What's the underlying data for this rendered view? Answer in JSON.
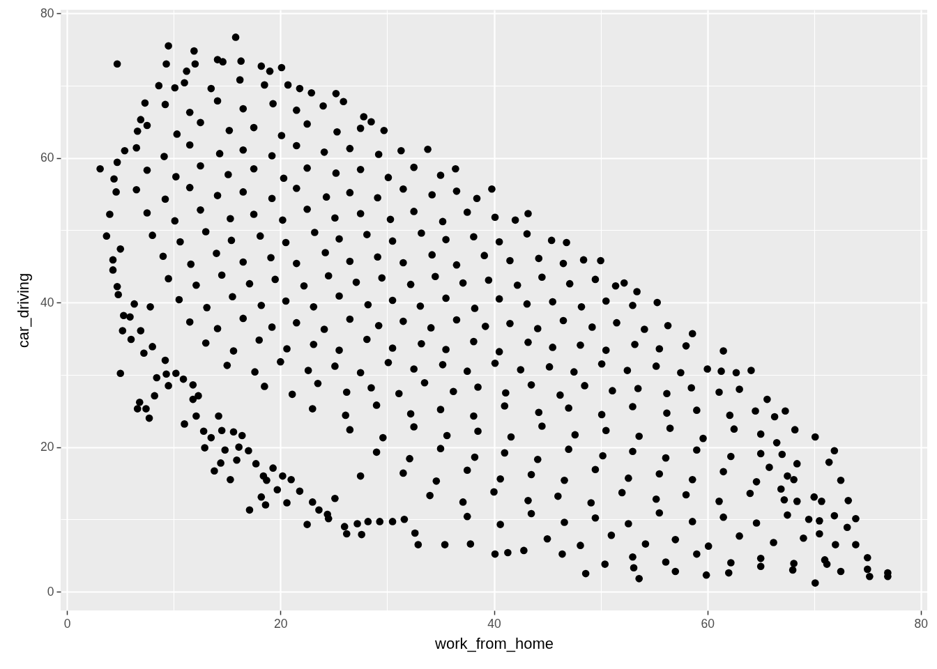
{
  "chart_data": {
    "type": "scatter",
    "xlabel": "work_from_home",
    "ylabel": "car_driving",
    "color": "#000000",
    "marker": "circle",
    "grid": true,
    "xlim": [
      -0.6,
      80.6
    ],
    "ylim": [
      -2.6,
      80.5
    ],
    "xticks": [
      0,
      20,
      40,
      60,
      80
    ],
    "yticks": [
      0,
      20,
      40,
      60,
      80
    ],
    "x": [
      3.1,
      4.7,
      9.5,
      9.3,
      11.9,
      15.8,
      8.6,
      7.3,
      5.4,
      4.7,
      4.4,
      4.6,
      4.0,
      3.7,
      4.3,
      4.3,
      5.0,
      6.6,
      6.9,
      10.1,
      11.2,
      12.0,
      14.1,
      14.6,
      16.3,
      18.2,
      20.1,
      19.0,
      25.2,
      25.9,
      27.8,
      28.5,
      29.7,
      22.9,
      20.7,
      21.8,
      33.8,
      36.4,
      39.8,
      43.2,
      46.8,
      50.0,
      52.2,
      53.4,
      55.3,
      58.6,
      61.5,
      64.1,
      67.3,
      68.2,
      70.1,
      71.9,
      71.4,
      72.5,
      70.7,
      73.9,
      75.0,
      76.9,
      76.9,
      75.2,
      70.1,
      73.9,
      68.4,
      68.1,
      68.4,
      65.6,
      66.3,
      62.7,
      53.6,
      48.6,
      50.4,
      53.1,
      59.9,
      40.1,
      41.3,
      42.8,
      46.4,
      32.9,
      35.4,
      37.8,
      32.6,
      5.0,
      6.6,
      7.4,
      7.7,
      6.8,
      8.2,
      8.4,
      9.5,
      11.0,
      12.1,
      12.9,
      13.8,
      14.4,
      15.3,
      17.1,
      18.6,
      18.2,
      20.6,
      22.5,
      26.2,
      27.6,
      26.0,
      27.2,
      24.5,
      23.6,
      23.0,
      19.7,
      18.7,
      15.9,
      14.8,
      13.5,
      12.8,
      14.2,
      4.7,
      4.8,
      6.3,
      5.3,
      5.9,
      5.2,
      6.0,
      7.2,
      6.9,
      7.8,
      8.0,
      9.3,
      9.2,
      10.2,
      10.9,
      11.8,
      11.8,
      12.3,
      14.5,
      15.6,
      16.4,
      16.1,
      17.0,
      17.7,
      18.4,
      19.3,
      20.2,
      21.0,
      21.8,
      24.4,
      25.1,
      28.2,
      29.3,
      30.5,
      31.6,
      27.5,
      73.2,
      71.9,
      73.1,
      75.0,
      61.3,
      66.5,
      67.0,
      65.8,
      66.9,
      69.5,
      70.5,
      71.2,
      72.5,
      68.0,
      65.0,
      62.0,
      57.0,
      11,
      13.5,
      16.2,
      18.5,
      9.2,
      11.5,
      14.1,
      16.5,
      19.3,
      21.5,
      24.0,
      7.5,
      10.3,
      12.5,
      15.2,
      17.5,
      20.1,
      22.5,
      25.3,
      27.5,
      6.5,
      9.1,
      11.5,
      14.3,
      16.5,
      19.2,
      21.5,
      24.1,
      26.5,
      29.2,
      31.3,
      7.5,
      10.2,
      12.5,
      15.1,
      17.5,
      20.3,
      22.5,
      25.2,
      27.5,
      30.1,
      32.5,
      35.0,
      6.5,
      9.2,
      11.5,
      14.1,
      16.5,
      19.2,
      21.5,
      24.3,
      26.5,
      29.1,
      31.5,
      34.2,
      36.5,
      38.4,
      7.5,
      10.1,
      12.5,
      15.3,
      17.5,
      20.2,
      22.5,
      25.1,
      27.5,
      30.3,
      32.5,
      35.2,
      37.5,
      40.1,
      42.0,
      8.0,
      10.6,
      13.0,
      15.4,
      18.1,
      20.5,
      23.2,
      25.5,
      28.1,
      30.5,
      33.2,
      35.5,
      38.1,
      40.5,
      43.1,
      45.4,
      9.0,
      11.6,
      14.0,
      16.5,
      19.1,
      21.5,
      24.2,
      26.5,
      29.1,
      31.5,
      34.2,
      36.5,
      39.1,
      41.5,
      44.2,
      46.5,
      48.4,
      9.5,
      12.1,
      14.5,
      17.1,
      19.5,
      22.2,
      24.5,
      27.1,
      29.5,
      32.2,
      34.5,
      37.1,
      39.5,
      42.2,
      44.5,
      47.1,
      49.5,
      51.4,
      10.5,
      13.1,
      15.5,
      18.2,
      20.5,
      23.1,
      25.5,
      28.2,
      30.5,
      33.1,
      35.5,
      38.2,
      40.5,
      43.1,
      45.5,
      48.2,
      50.5,
      53.0,
      11.5,
      14.1,
      16.5,
      19.2,
      21.5,
      24.1,
      26.5,
      29.2,
      31.5,
      34.1,
      36.5,
      39.2,
      41.5,
      44.1,
      46.5,
      49.2,
      51.5,
      54.1,
      56.3,
      13.0,
      15.6,
      18.0,
      20.6,
      23.1,
      25.5,
      28.1,
      30.5,
      33.2,
      35.5,
      38.1,
      40.5,
      43.2,
      45.5,
      48.1,
      50.5,
      53.2,
      55.5,
      58.0,
      15.0,
      17.6,
      20.0,
      22.6,
      25.1,
      27.5,
      30.1,
      32.5,
      35.2,
      37.5,
      40.1,
      42.5,
      45.2,
      47.5,
      50.1,
      52.5,
      55.2,
      57.5,
      60.0,
      18.5,
      21.1,
      23.5,
      26.2,
      28.5,
      31.1,
      33.5,
      36.2,
      38.5,
      41.1,
      43.5,
      46.2,
      48.5,
      51.1,
      53.5,
      56.2,
      58.5,
      61.1,
      63.0,
      23.0,
      26.1,
      29.0,
      32.2,
      35.0,
      38.1,
      41.0,
      44.2,
      47.0,
      50.1,
      53.0,
      56.2,
      59.0,
      62.1,
      64.5,
      26.5,
      29.6,
      32.5,
      35.6,
      38.5,
      41.6,
      44.5,
      47.6,
      50.5,
      53.6,
      56.5,
      59.6,
      62.5,
      65.0,
      29.0,
      32.1,
      35.0,
      38.2,
      41.0,
      44.1,
      47.0,
      50.2,
      53.0,
      56.1,
      59.0,
      62.2,
      65.0,
      31.5,
      34.6,
      37.5,
      40.6,
      43.5,
      46.6,
      49.5,
      52.6,
      55.5,
      58.6,
      61.5,
      64.6,
      67.5,
      34.0,
      37.1,
      40.0,
      43.2,
      46.0,
      49.1,
      52.0,
      55.2,
      58.0,
      61.1,
      64.0,
      67.2,
      70.0,
      37.5,
      40.6,
      43.5,
      46.6,
      49.5,
      52.6,
      55.5,
      58.6,
      61.5,
      64.6,
      67.5,
      70.5,
      45.0,
      48.1,
      51.0,
      54.2,
      57.0,
      60.1,
      63.0,
      66.2,
      69.0,
      72.0,
      53.0,
      56.1,
      59.0,
      62.2,
      65.0,
      68.1,
      71.0
    ],
    "values": [
      58.5,
      73.0,
      75.5,
      73.0,
      74.8,
      76.7,
      70.0,
      67.6,
      61.0,
      59.4,
      57.1,
      55.3,
      52.2,
      49.2,
      45.9,
      44.5,
      47.4,
      63.7,
      65.3,
      69.7,
      72.0,
      73.0,
      73.6,
      73.3,
      73.4,
      72.7,
      72.5,
      72.0,
      68.9,
      67.8,
      65.7,
      65.0,
      63.8,
      69.0,
      70.1,
      69.6,
      61.2,
      58.5,
      55.7,
      52.3,
      48.3,
      45.8,
      42.7,
      41.5,
      40.0,
      35.7,
      33.3,
      30.6,
      25.0,
      22.4,
      21.4,
      19.5,
      17.9,
      15.4,
      12.5,
      10.1,
      4.7,
      2.6,
      2.1,
      2.1,
      1.2,
      6.5,
      17.7,
      15.5,
      12.5,
      26.6,
      24.2,
      30.3,
      1.8,
      2.5,
      3.8,
      3.3,
      2.3,
      5.2,
      5.4,
      5.7,
      5.2,
      6.5,
      6.5,
      6.6,
      8.1,
      30.2,
      25.3,
      25.3,
      24.0,
      26.2,
      27.1,
      29.6,
      28.5,
      23.2,
      24.3,
      19.9,
      16.7,
      17.8,
      15.5,
      11.3,
      12.0,
      13.1,
      12.3,
      9.3,
      8.0,
      7.9,
      9.0,
      9.4,
      10.1,
      11.3,
      12.4,
      14.1,
      15.4,
      18.2,
      19.6,
      21.3,
      22.2,
      24.3,
      42.2,
      41.1,
      39.8,
      38.2,
      38.0,
      36.1,
      34.9,
      33.0,
      36.1,
      39.4,
      33.9,
      30.1,
      32.0,
      30.2,
      29.4,
      28.6,
      26.6,
      27.1,
      22.3,
      22.1,
      21.6,
      20.0,
      19.5,
      17.7,
      16.0,
      17.1,
      16.0,
      15.5,
      13.9,
      10.7,
      12.9,
      9.7,
      9.7,
      9.7,
      10.0,
      16.0,
      12.6,
      10.5,
      8.9,
      3.1,
      30.5,
      20.6,
      19.0,
      17.2,
      14.2,
      10.0,
      8.0,
      3.8,
      2.8,
      3.0,
      3.5,
      2.6,
      2.8,
      70.4,
      69.6,
      70.8,
      70.1,
      67.4,
      66.3,
      67.9,
      66.8,
      67.5,
      66.6,
      67.2,
      64.5,
      63.3,
      64.9,
      63.8,
      64.2,
      63.1,
      64.7,
      63.6,
      64.1,
      61.4,
      60.2,
      61.8,
      60.6,
      61.1,
      60.3,
      61.7,
      60.8,
      61.3,
      60.5,
      61.0,
      58.3,
      57.4,
      58.9,
      57.7,
      58.5,
      57.2,
      58.6,
      57.9,
      58.4,
      57.3,
      58.7,
      57.6,
      55.6,
      54.3,
      55.9,
      54.8,
      55.3,
      54.4,
      55.8,
      54.6,
      55.2,
      54.5,
      55.7,
      54.9,
      55.4,
      54.4,
      52.4,
      51.3,
      52.8,
      51.6,
      52.2,
      51.4,
      52.9,
      51.7,
      52.3,
      51.5,
      52.6,
      51.2,
      52.5,
      51.8,
      51.4,
      49.3,
      48.4,
      49.8,
      48.6,
      49.2,
      48.3,
      49.7,
      48.8,
      49.4,
      48.5,
      49.6,
      48.7,
      49.1,
      48.4,
      49.5,
      48.6,
      46.4,
      45.3,
      46.8,
      45.6,
      46.2,
      45.4,
      46.9,
      45.7,
      46.3,
      45.5,
      46.6,
      45.2,
      46.5,
      45.8,
      46.1,
      45.4,
      45.9,
      43.3,
      42.4,
      43.8,
      42.6,
      43.2,
      42.3,
      43.7,
      42.8,
      43.4,
      42.5,
      43.6,
      42.7,
      43.1,
      42.4,
      43.5,
      42.6,
      43.2,
      42.3,
      40.4,
      39.3,
      40.8,
      39.6,
      40.2,
      39.4,
      40.9,
      39.7,
      40.3,
      39.5,
      40.6,
      39.2,
      40.5,
      39.8,
      40.1,
      39.4,
      40.2,
      39.6,
      37.3,
      36.4,
      37.8,
      36.6,
      37.2,
      36.3,
      37.7,
      36.8,
      37.4,
      36.5,
      37.6,
      36.7,
      37.1,
      36.4,
      37.5,
      36.6,
      37.2,
      36.3,
      36.8,
      34.4,
      33.3,
      34.8,
      33.6,
      34.2,
      33.4,
      34.9,
      33.7,
      34.3,
      33.5,
      34.6,
      33.2,
      34.5,
      33.8,
      34.1,
      33.4,
      34.2,
      33.6,
      34.0,
      31.3,
      30.4,
      31.8,
      30.6,
      31.2,
      30.3,
      31.7,
      30.8,
      31.4,
      30.5,
      31.6,
      30.7,
      31.1,
      30.4,
      31.5,
      30.6,
      31.2,
      30.3,
      30.8,
      28.4,
      27.3,
      28.8,
      27.6,
      28.2,
      27.4,
      28.9,
      27.7,
      28.3,
      27.5,
      28.6,
      27.2,
      28.5,
      27.8,
      28.1,
      27.4,
      28.2,
      27.6,
      28.0,
      25.3,
      24.4,
      25.8,
      24.6,
      25.2,
      24.3,
      25.7,
      24.8,
      25.4,
      24.5,
      25.6,
      24.7,
      25.1,
      24.4,
      25.0,
      22.4,
      21.3,
      22.8,
      21.6,
      22.2,
      21.4,
      22.9,
      21.7,
      22.3,
      21.5,
      22.6,
      21.2,
      22.5,
      21.8,
      19.3,
      18.4,
      19.8,
      18.6,
      19.2,
      18.3,
      19.7,
      18.8,
      19.4,
      18.5,
      19.6,
      18.7,
      19.1,
      16.4,
      15.3,
      16.8,
      15.6,
      16.2,
      15.4,
      16.9,
      15.7,
      16.3,
      15.5,
      16.6,
      15.2,
      16.0,
      13.3,
      12.4,
      13.8,
      12.6,
      13.2,
      12.3,
      13.7,
      12.8,
      13.4,
      12.5,
      13.6,
      12.7,
      13.1,
      10.4,
      9.3,
      10.8,
      9.6,
      10.2,
      9.4,
      10.9,
      9.7,
      10.3,
      9.5,
      10.6,
      9.8,
      7.3,
      6.4,
      7.8,
      6.6,
      7.2,
      6.3,
      7.7,
      6.8,
      7.4,
      6.5,
      4.8,
      4.1,
      5.2,
      4.0,
      4.6,
      3.9,
      4.4
    ]
  }
}
